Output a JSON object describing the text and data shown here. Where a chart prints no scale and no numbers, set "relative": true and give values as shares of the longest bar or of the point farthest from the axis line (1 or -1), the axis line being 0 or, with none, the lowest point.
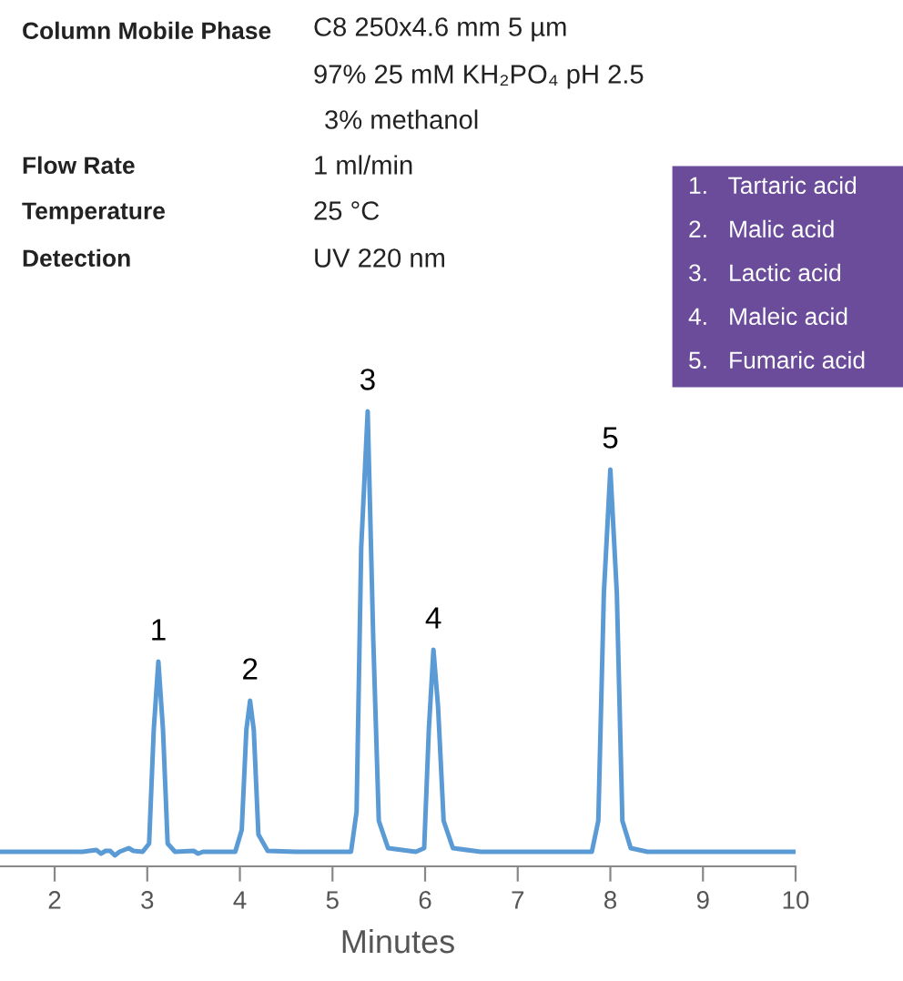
{
  "chart_data": {
    "type": "line",
    "relative": true,
    "xlabel": "Minutes",
    "xlim": [
      1.41,
      10
    ],
    "xticks": [
      2,
      3,
      4,
      5,
      6,
      7,
      8,
      9,
      10
    ],
    "grid": false,
    "legend": false,
    "marker": "none",
    "line_style": "solid",
    "series": [
      {
        "color": "#5b9bd5",
        "x": [
          1.41,
          2.3,
          2.45,
          2.5,
          2.55,
          2.6,
          2.65,
          2.7,
          2.75,
          2.8,
          2.85,
          2.95,
          3.02,
          3.07,
          3.12,
          3.17,
          3.22,
          3.3,
          3.5,
          3.55,
          3.6,
          3.95,
          4.02,
          4.07,
          4.11,
          4.15,
          4.2,
          4.3,
          4.6,
          5.2,
          5.26,
          5.31,
          5.38,
          5.44,
          5.5,
          5.6,
          5.9,
          5.99,
          6.04,
          6.09,
          6.14,
          6.2,
          6.3,
          6.6,
          7.8,
          7.87,
          7.93,
          8.0,
          8.07,
          8.13,
          8.22,
          8.4,
          10
        ],
        "values": [
          0.032,
          0.032,
          0.036,
          0.028,
          0.034,
          0.034,
          0.024,
          0.032,
          0.036,
          0.04,
          0.034,
          0.032,
          0.05,
          0.3,
          0.45,
          0.3,
          0.05,
          0.032,
          0.034,
          0.028,
          0.032,
          0.032,
          0.08,
          0.3,
          0.364,
          0.3,
          0.07,
          0.034,
          0.032,
          0.032,
          0.12,
          0.7,
          1.0,
          0.5,
          0.1,
          0.04,
          0.032,
          0.04,
          0.3,
          0.476,
          0.35,
          0.1,
          0.04,
          0.032,
          0.032,
          0.1,
          0.6,
          0.872,
          0.6,
          0.1,
          0.04,
          0.032,
          0.032
        ]
      }
    ],
    "annotations": [
      {
        "text": "Column Mobile Phase"
      },
      {
        "text": "C8 250x4.6 mm 5 µm"
      },
      {
        "text": "97% 25 mM KH₂PO₄ pH 2.5"
      },
      {
        "text": "3% methanol"
      },
      {
        "text": "Flow Rate"
      },
      {
        "text": "1 ml/min"
      },
      {
        "text": "Temperature"
      },
      {
        "text": "25 °C"
      },
      {
        "text": "Detection"
      },
      {
        "text": "UV 220 nm"
      },
      {
        "text": "1.   Tartaric acid"
      },
      {
        "text": "2.   Malic acid"
      },
      {
        "text": "3.   Lactic acid"
      },
      {
        "text": "4.   Maleic acid"
      },
      {
        "text": "5.   Fumaric acid"
      },
      {
        "text": "1",
        "x": 3.12,
        "y": 0.45
      },
      {
        "text": "2",
        "x": 4.11,
        "y": 0.364
      },
      {
        "text": "3",
        "x": 5.38,
        "y": 1.0
      },
      {
        "text": "4",
        "x": 6.09,
        "y": 0.476
      },
      {
        "text": "5",
        "x": 8.0,
        "y": 0.872
      }
    ]
  }
}
